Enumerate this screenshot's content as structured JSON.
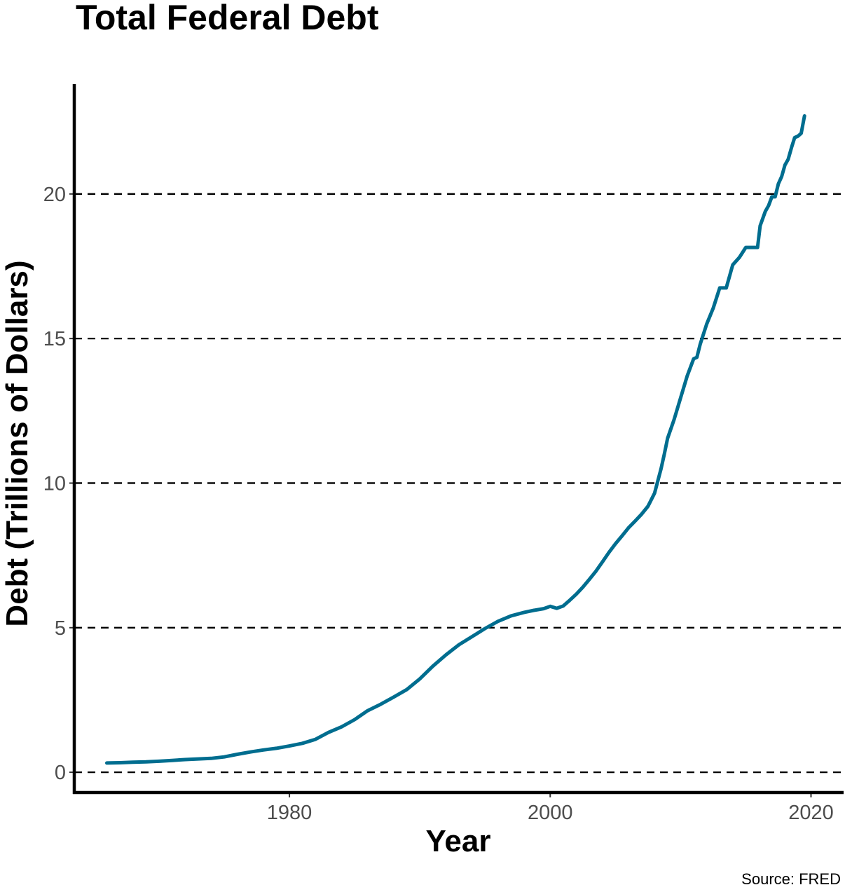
{
  "chart_data": {
    "type": "line",
    "title": "Total Federal Debt",
    "xlabel": "Year",
    "ylabel": "Debt (Trillions of Dollars)",
    "caption": "Source: FRED",
    "xlim": [
      1963.5,
      2022.5
    ],
    "ylim": [
      -0.7,
      23.8
    ],
    "x_ticks": [
      1980,
      2000,
      2020
    ],
    "y_ticks": [
      0,
      5,
      10,
      15,
      20
    ],
    "grid": "horizontal dashed",
    "legend": "none",
    "colors": {
      "line": "#006d8f",
      "axis": "#000000",
      "tick_label": "#4d4d4d"
    },
    "series": [
      {
        "x": [
          1966,
          1967,
          1968,
          1969,
          1970,
          1971,
          1972,
          1973,
          1974,
          1975,
          1976,
          1977,
          1978,
          1979,
          1980,
          1981,
          1982,
          1983,
          1984,
          1985,
          1986,
          1987,
          1988,
          1989,
          1990,
          1991,
          1992,
          1993,
          1994,
          1995,
          1996,
          1997,
          1998,
          1998.75,
          1999.5,
          2000,
          2000.5,
          2001,
          2001.5,
          2002,
          2002.5,
          2003,
          2003.5,
          2004,
          2004.5,
          2005,
          2005.5,
          2006,
          2006.5,
          2007,
          2007.5,
          2008,
          2008.5,
          2008.75,
          2009,
          2009.5,
          2010,
          2010.5,
          2011,
          2011.25,
          2011.5,
          2012,
          2012.5,
          2013,
          2013.5,
          2014,
          2014.5,
          2015,
          2015.25,
          2015.5,
          2015.9,
          2016.1,
          2016.5,
          2016.75,
          2017,
          2017.25,
          2017.5,
          2017.75,
          2018,
          2018.25,
          2018.5,
          2018.75,
          2019,
          2019.25,
          2019.5
        ],
        "y": [
          0.32,
          0.33,
          0.35,
          0.36,
          0.38,
          0.41,
          0.44,
          0.46,
          0.48,
          0.53,
          0.62,
          0.7,
          0.77,
          0.83,
          0.91,
          1.0,
          1.14,
          1.38,
          1.57,
          1.82,
          2.13,
          2.35,
          2.6,
          2.86,
          3.23,
          3.67,
          4.06,
          4.41,
          4.69,
          4.97,
          5.22,
          5.41,
          5.53,
          5.6,
          5.66,
          5.74,
          5.67,
          5.75,
          5.95,
          6.16,
          6.4,
          6.67,
          6.95,
          7.27,
          7.6,
          7.9,
          8.17,
          8.45,
          8.68,
          8.92,
          9.2,
          9.65,
          10.5,
          11.0,
          11.55,
          12.2,
          12.95,
          13.7,
          14.3,
          14.35,
          14.8,
          15.5,
          16.05,
          16.75,
          16.75,
          17.55,
          17.8,
          18.15,
          18.15,
          18.15,
          18.15,
          18.9,
          19.4,
          19.6,
          19.9,
          19.9,
          20.35,
          20.6,
          21.0,
          21.2,
          21.6,
          21.95,
          22.0,
          22.1,
          22.7
        ]
      }
    ]
  }
}
